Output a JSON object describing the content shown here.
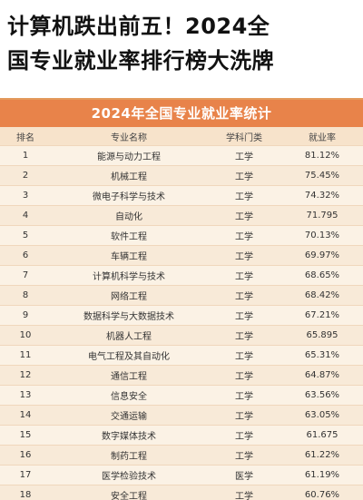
{
  "headline": {
    "line1": "计算机跌出前五！2024全",
    "line2": "国专业就业率排行榜大洗牌"
  },
  "table": {
    "title": "2024年全国专业就业率统计",
    "headers": {
      "rank": "排名",
      "major": "专业名称",
      "category": "学科门类",
      "rate": "就业率"
    },
    "rows": [
      {
        "rank": "1",
        "major": "能源与动力工程",
        "category": "工学",
        "rate": "81.12%"
      },
      {
        "rank": "2",
        "major": "机械工程",
        "category": "工学",
        "rate": "75.45%"
      },
      {
        "rank": "3",
        "major": "微电子科学与技术",
        "category": "工学",
        "rate": "74.32%"
      },
      {
        "rank": "4",
        "major": "自动化",
        "category": "工学",
        "rate": "71.795"
      },
      {
        "rank": "5",
        "major": "软件工程",
        "category": "工学",
        "rate": "70.13%"
      },
      {
        "rank": "6",
        "major": "车辆工程",
        "category": "工学",
        "rate": "69.97%"
      },
      {
        "rank": "7",
        "major": "计算机科学与技术",
        "category": "工学",
        "rate": "68.65%"
      },
      {
        "rank": "8",
        "major": "网络工程",
        "category": "工学",
        "rate": "68.42%"
      },
      {
        "rank": "9",
        "major": "数据科学与大数据技术",
        "category": "工学",
        "rate": "67.21%"
      },
      {
        "rank": "10",
        "major": "机器人工程",
        "category": "工学",
        "rate": "65.895"
      },
      {
        "rank": "11",
        "major": "电气工程及其自动化",
        "category": "工学",
        "rate": "65.31%"
      },
      {
        "rank": "12",
        "major": "通信工程",
        "category": "工学",
        "rate": "64.87%"
      },
      {
        "rank": "13",
        "major": "信息安全",
        "category": "工学",
        "rate": "63.56%"
      },
      {
        "rank": "14",
        "major": "交通运输",
        "category": "工学",
        "rate": "63.05%"
      },
      {
        "rank": "15",
        "major": "数字媒体技术",
        "category": "工学",
        "rate": "61.675"
      },
      {
        "rank": "16",
        "major": "制药工程",
        "category": "工学",
        "rate": "61.22%"
      },
      {
        "rank": "17",
        "major": "医学检验技术",
        "category": "医学",
        "rate": "61.19%"
      },
      {
        "rank": "18",
        "major": "安全工程",
        "category": "工学",
        "rate": "60.76%"
      }
    ]
  },
  "colors": {
    "title_bar": "#e8834a",
    "header_row": "#f7e3cb",
    "row_odd": "#fbf2e5",
    "row_even": "#f8ead8"
  }
}
